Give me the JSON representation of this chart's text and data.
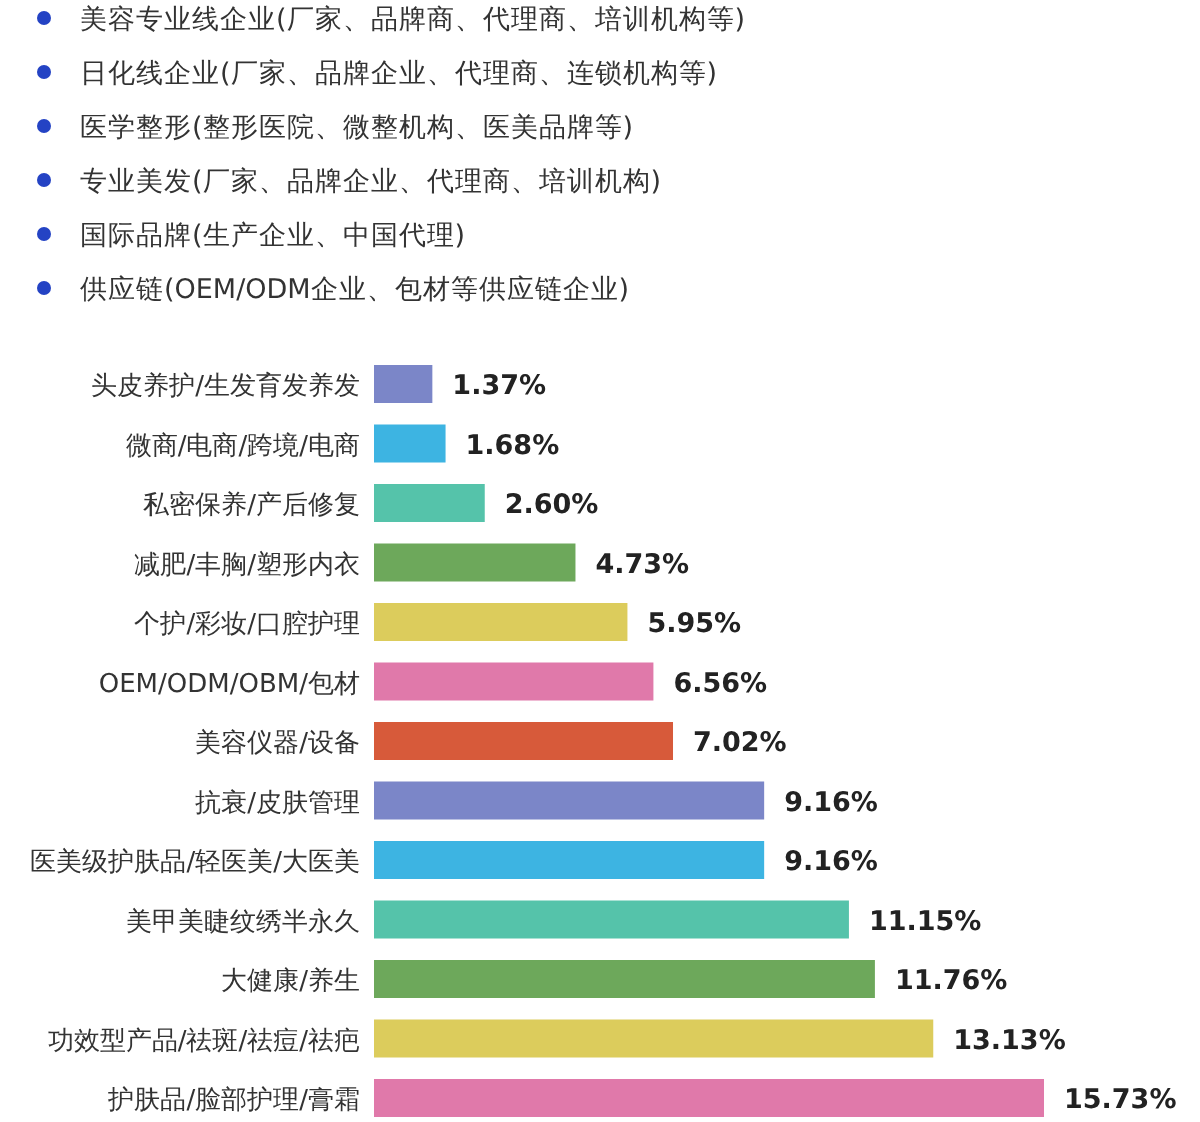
{
  "chart_data": {
    "type": "bar",
    "orientation": "horizontal",
    "value_labels": [
      "1.37%",
      "1.68%",
      "2.60%",
      "4.73%",
      "5.95%",
      "6.56%",
      "7.02%",
      "9.16%",
      "9.16%",
      "11.15%",
      "11.76%",
      "13.13%",
      "15.73%"
    ],
    "annotations": [
      "美容专业线企业(厂家、品牌商、代理商、培训机构等)",
      "日化线企业(厂家、品牌企业、代理商、连锁机构等)",
      "医学整形(整形医院、微整机构、医美品牌等)",
      "专业美发(厂家、品牌企业、代理商、培训机构)",
      "国际品牌(生产企业、中国代理)",
      "供应链(OEM/ODM企业、包材等供应链企业)"
    ],
    "categories": [
      "头皮养护/生发育发养发",
      "微商/电商/跨境/电商",
      "私密保养/产后修复",
      "减肥/丰胸/塑形内衣",
      "个护/彩妆/口腔护理",
      "OEM/ODM/OBM/包材",
      "美容仪器/设备",
      "抗衰/皮肤管理",
      "医美级护肤品/轻医美/大医美",
      "美甲美睫纹绣半永久",
      "大健康/养生",
      "功效型产品/祛斑/祛痘/祛疤",
      "护肤品/脸部护理/膏霜"
    ],
    "values": [
      1.37,
      1.68,
      2.6,
      4.73,
      5.95,
      6.56,
      7.02,
      9.16,
      9.16,
      11.15,
      11.76,
      13.13,
      15.73
    ],
    "colors": [
      "#7b86c8",
      "#3db4e2",
      "#55c3aa",
      "#6da85b",
      "#dccc5c",
      "#e079aa",
      "#d75a3a",
      "#7b86c8",
      "#3db4e2",
      "#55c3aa",
      "#6da85b",
      "#dccc5c",
      "#e079aa"
    ]
  }
}
